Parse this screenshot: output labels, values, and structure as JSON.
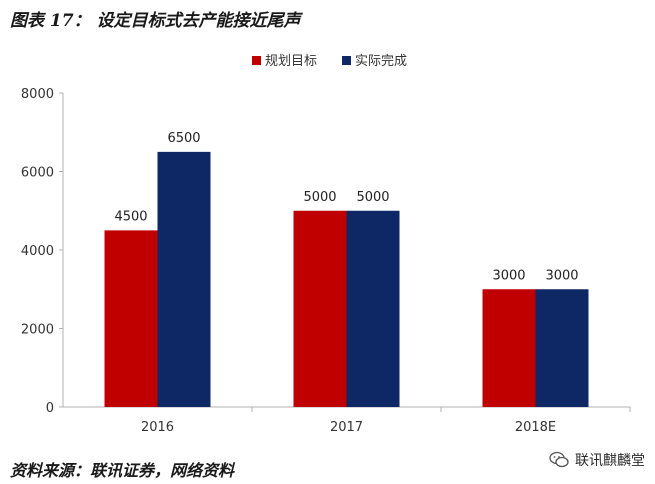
{
  "figure": {
    "title": "图表 17： 设定目标式去产能接近尾声",
    "source": "资料来源：联讯证券，网络资料",
    "watermark": "联讯麒麟堂"
  },
  "colors": {
    "series_target": "#C00000",
    "series_actual": "#0E2866",
    "axis": "#B0B0B0",
    "text": "#333333"
  },
  "chart_data": {
    "type": "bar",
    "categories": [
      "2016",
      "2017",
      "2018E"
    ],
    "series": [
      {
        "name": "规划目标",
        "values": [
          4500,
          5000,
          3000
        ]
      },
      {
        "name": "实际完成",
        "values": [
          6500,
          5000,
          3000
        ]
      }
    ],
    "ylim": [
      0,
      8000
    ],
    "yticks": [
      0,
      2000,
      4000,
      6000,
      8000
    ],
    "data_labels": true,
    "legend": "top-center",
    "grid": false
  }
}
